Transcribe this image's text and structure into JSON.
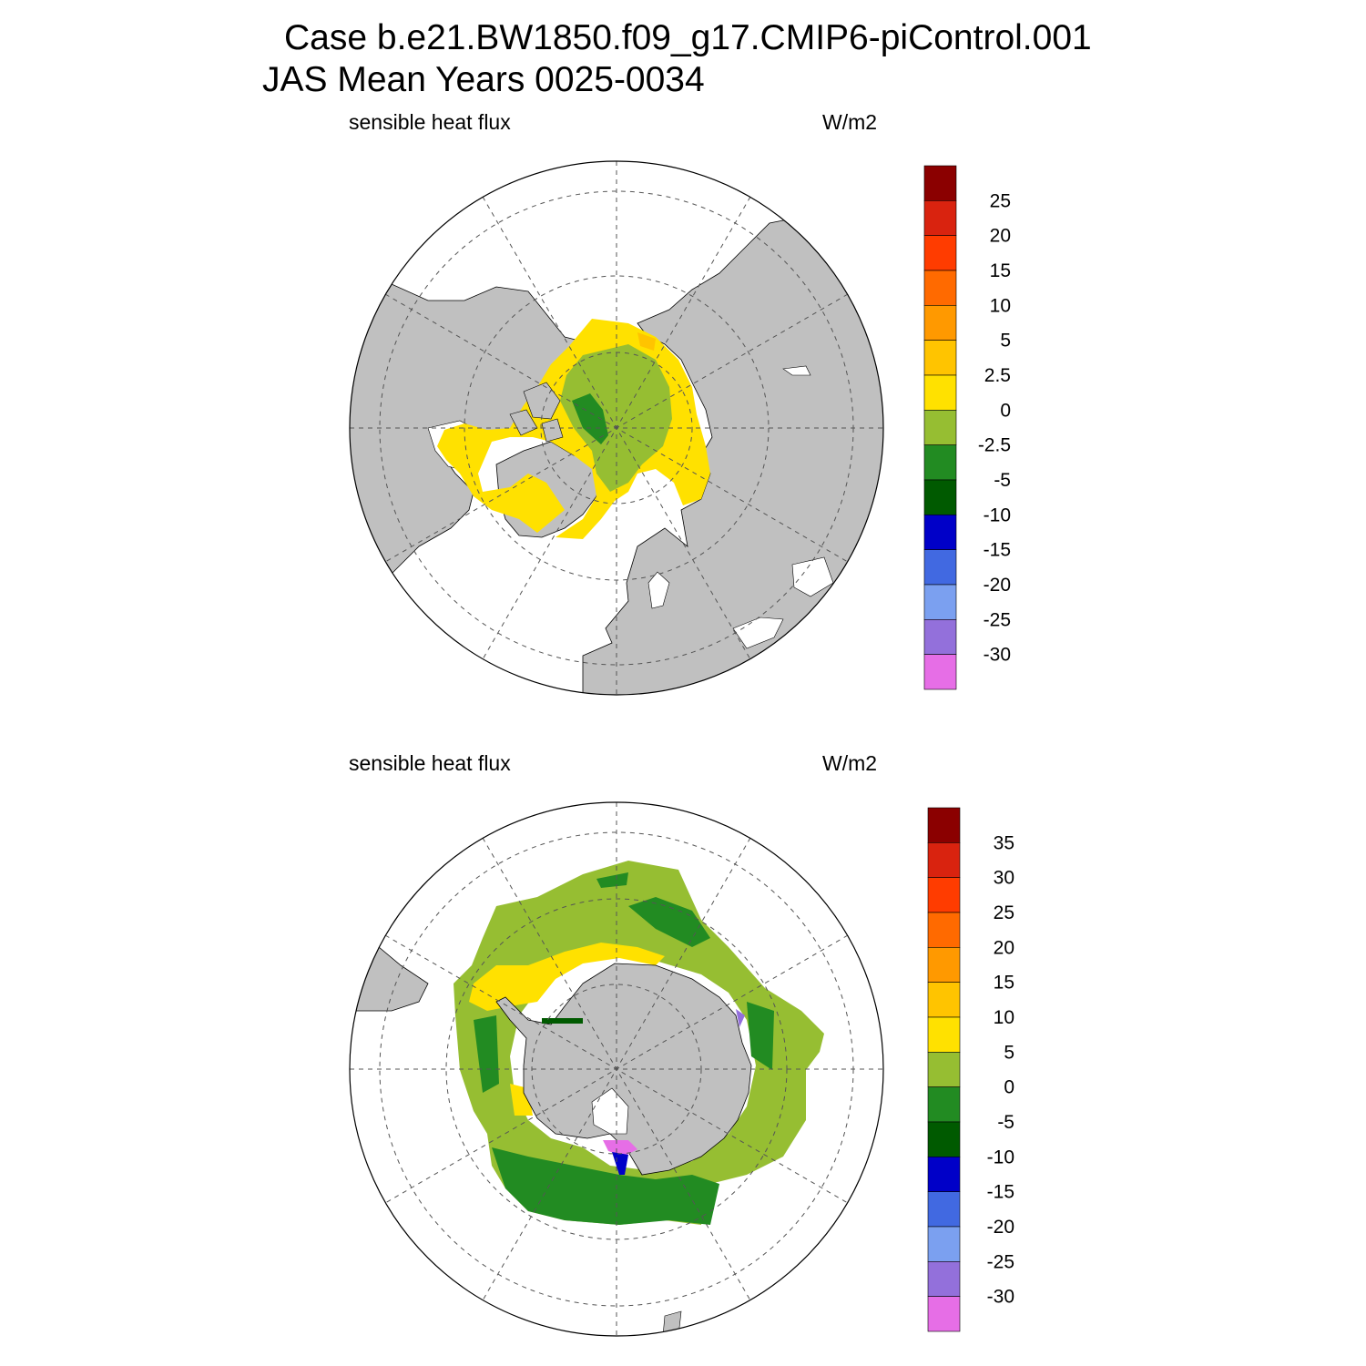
{
  "title": {
    "line1": "Case b.e21.BW1850.f09_g17.CMIP6-piControl.001",
    "line2": "JAS Mean   Years 0025-0034"
  },
  "panels": [
    {
      "id": "north",
      "variable": "sensible heat flux",
      "units": "W/m2",
      "colorbar": {
        "levels": [
          "25",
          "20",
          "15",
          "10",
          "5",
          "2.5",
          "0",
          "-2.5",
          "-5",
          "-10",
          "-15",
          "-20",
          "-25",
          "-30"
        ],
        "colors": [
          "#8b0000",
          "#d9230f",
          "#ff3c00",
          "#ff6a00",
          "#ff9900",
          "#ffc400",
          "#ffe100",
          "#96be32",
          "#228b22",
          "#005a00",
          "#0000c8",
          "#4169e1",
          "#7ba0f0",
          "#9370db",
          "#e66ee6"
        ]
      }
    },
    {
      "id": "south",
      "variable": "sensible heat flux",
      "units": "W/m2",
      "colorbar": {
        "levels": [
          "35",
          "30",
          "25",
          "20",
          "15",
          "10",
          "5",
          "0",
          "-5",
          "-10",
          "-15",
          "-20",
          "-25",
          "-30"
        ],
        "colors": [
          "#8b0000",
          "#d9230f",
          "#ff3c00",
          "#ff6a00",
          "#ff9900",
          "#ffc400",
          "#ffe100",
          "#96be32",
          "#228b22",
          "#005a00",
          "#0000c8",
          "#4169e1",
          "#7ba0f0",
          "#9370db",
          "#e66ee6"
        ]
      }
    }
  ],
  "map_colors": {
    "land": "#c0c0c0",
    "no_data": "#ffffff",
    "grid": "#555555"
  }
}
